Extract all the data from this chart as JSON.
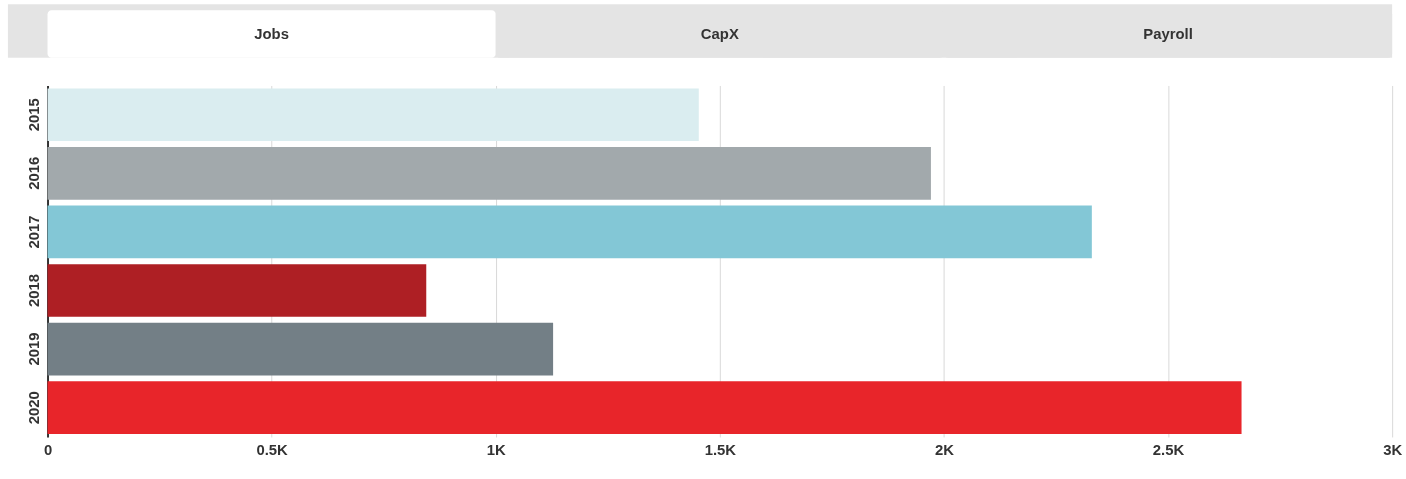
{
  "chart_data": {
    "type": "bar",
    "orientation": "horizontal",
    "annotations": [
      "Jobs",
      "CapX",
      "Payroll"
    ],
    "categories": [
      "2015",
      "2016",
      "2017",
      "2018",
      "2019",
      "2020"
    ],
    "values": [
      1453,
      1971,
      2330,
      845,
      1128,
      2664
    ],
    "colors": [
      "#daedf0",
      "#a2a9ac",
      "#83c7d6",
      "#ae1f24",
      "#737f86",
      "#e8252a"
    ],
    "xlim": [
      0,
      3000
    ],
    "xticks": [
      0,
      {
        "value": 500,
        "label": "0.5K"
      },
      {
        "value": 1000,
        "label": "1K"
      },
      {
        "value": 1500,
        "label": "1.5K"
      },
      {
        "value": 2000,
        "label": "2K"
      },
      {
        "value": 2500,
        "label": "2.5K"
      },
      {
        "value": 3000,
        "label": "3K"
      }
    ],
    "grid": "x"
  }
}
